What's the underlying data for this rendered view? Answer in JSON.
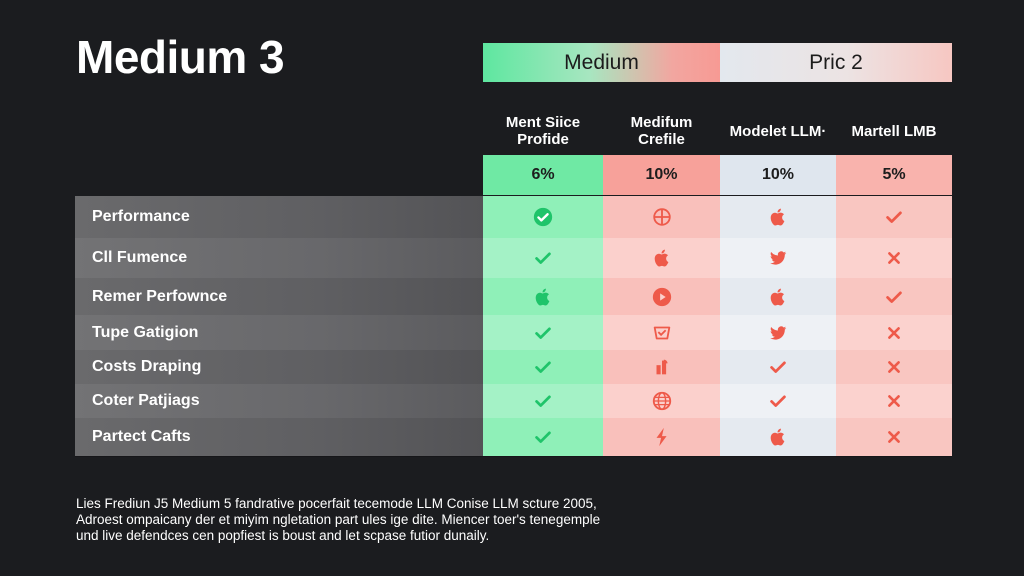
{
  "title": "Medium 3",
  "top_headers": [
    "Medium",
    "Pric 2"
  ],
  "columns": [
    {
      "name": "Ment Siice\nProfide",
      "pct": "6%"
    },
    {
      "name": "Medifum\nCrefile",
      "pct": "10%"
    },
    {
      "name": "Modelet LLM·",
      "pct": "10%"
    },
    {
      "name": "Martell LMB",
      "pct": "5%"
    }
  ],
  "rows": [
    {
      "label": "Performance",
      "cells": [
        "check-circle-icon",
        "crosshair-icon",
        "apple-icon",
        "check-icon"
      ]
    },
    {
      "label": "Cll Fumence",
      "cells": [
        "check-icon",
        "apple-icon",
        "twitter-bird-icon",
        "cross-icon"
      ]
    },
    {
      "label": "Remer Perfownce",
      "cells": [
        "apple-icon",
        "play-circle-icon",
        "apple-icon",
        "check-icon"
      ]
    },
    {
      "label": "Tupe Gatigion",
      "cells": [
        "check-icon",
        "basket-icon",
        "twitter-bird-icon",
        "cross-icon"
      ]
    },
    {
      "label": "Costs Draping",
      "cells": [
        "check-icon",
        "bar-chart-icon",
        "check-icon",
        "cross-icon"
      ]
    },
    {
      "label": "Coter Patjiags",
      "cells": [
        "check-icon",
        "globe-icon",
        "check-icon",
        "cross-icon"
      ]
    },
    {
      "label": "Partect Cafts",
      "cells": [
        "check-icon",
        "lightning-icon",
        "apple-icon",
        "cross-icon"
      ]
    }
  ],
  "footnote": [
    "Lies Frediun J5 Medium 5 fandrative pocerfait tecemode LLM Conise LLM scture 2005,",
    "Adroest ompaicany der et miyim ngletation part ules ige dite. Miencer toer's tenegemple",
    "und live defendces cen popfiest is boust and let scpase futior dunaily."
  ],
  "colors": {
    "background": "#1b1c1f",
    "green_icon": "#1fc46a",
    "red_icon": "#ee5a4a"
  }
}
